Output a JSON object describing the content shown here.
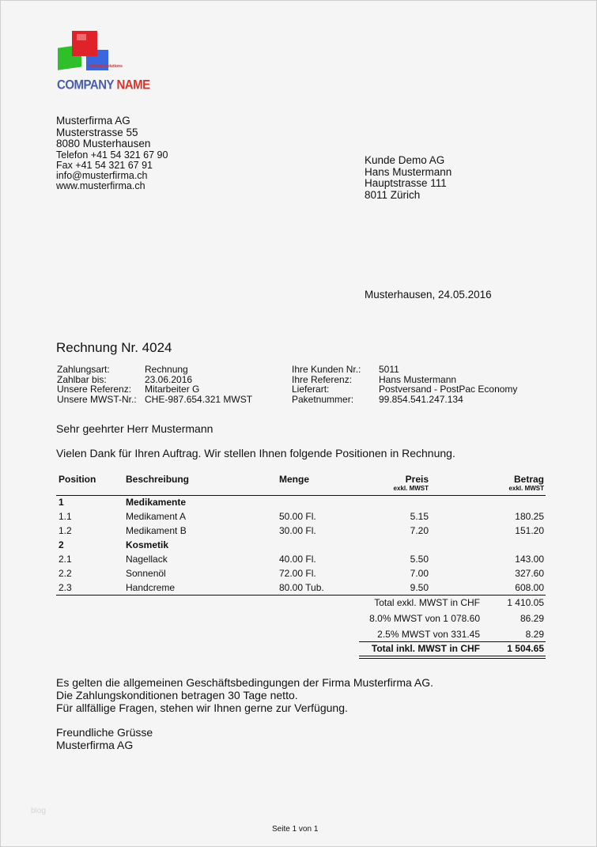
{
  "logo": {
    "text_main": "COMPANY",
    "text_accent": "NAME",
    "tagline": "Network Solutions"
  },
  "sender": [
    "Musterfirma AG",
    "Musterstrasse 55",
    "8080 Musterhausen",
    "Telefon +41 54 321 67 90",
    "Fax +41 54 321 67 91",
    "info@musterfirma.ch",
    "www.musterfirma.ch"
  ],
  "recipient": [
    "Kunde Demo AG",
    "Hans Mustermann",
    "Hauptstrasse 111",
    "8011 Zürich"
  ],
  "place_date": "Musterhausen, 24.05.2016",
  "title": "Rechnung Nr. 4024",
  "info_left": [
    {
      "label": "Zahlungsart:",
      "value": "Rechnung"
    },
    {
      "label": "Zahlbar bis:",
      "value": "23.06.2016"
    },
    {
      "label": "Unsere Referenz:",
      "value": "Mitarbeiter G"
    },
    {
      "label": "Unsere MWST-Nr.:",
      "value": "CHE-987.654.321 MWST"
    }
  ],
  "info_right": [
    {
      "label": "Ihre Kunden Nr.:",
      "value": "5011"
    },
    {
      "label": "Ihre Referenz:",
      "value": "Hans Mustermann"
    },
    {
      "label": "Lieferart:",
      "value": "Postversand - PostPac Economy"
    },
    {
      "label": "Paketnummer:",
      "value": "99.854.541.247.134"
    }
  ],
  "salutation": "Sehr geehrter Herr Mustermann",
  "intro": "Vielen Dank für Ihren Auftrag. Wir stellen Ihnen folgende Positionen in Rechnung.",
  "table": {
    "headers": {
      "position": "Position",
      "description": "Beschreibung",
      "quantity": "Menge",
      "price": "Preis",
      "price_sub": "exkl. MWST",
      "amount": "Betrag",
      "amount_sub": "exkl. MWST"
    },
    "rows": [
      {
        "pos": "1",
        "desc": "Medikamente",
        "qty": "",
        "price": "",
        "amount": "",
        "group": true
      },
      {
        "pos": "1.1",
        "desc": "Medikament A",
        "qty": "50.00 Fl.",
        "price": "5.15",
        "amount": "180.25"
      },
      {
        "pos": "1.2",
        "desc": "Medikament B",
        "qty": "30.00 Fl.",
        "price": "7.20",
        "amount": "151.20"
      },
      {
        "pos": "2",
        "desc": "Kosmetik",
        "qty": "",
        "price": "",
        "amount": "",
        "group": true
      },
      {
        "pos": "2.1",
        "desc": "Nagellack",
        "qty": "40.00 Fl.",
        "price": "5.50",
        "amount": "143.00"
      },
      {
        "pos": "2.2",
        "desc": "Sonnenöl",
        "qty": "72.00 Fl.",
        "price": "7.00",
        "amount": "327.60"
      },
      {
        "pos": "2.3",
        "desc": "Handcreme",
        "qty": "80.00 Tub.",
        "price": "9.50",
        "amount": "608.00"
      }
    ],
    "totals": [
      {
        "label": "Total exkl. MWST in CHF",
        "value": "1 410.05"
      },
      {
        "label": "8.0% MWST von 1 078.60",
        "value": "86.29"
      },
      {
        "label": "2.5% MWST von 331.45",
        "value": "8.29"
      },
      {
        "label": "Total inkl. MWST in CHF",
        "value": "1 504.65",
        "bold": true
      }
    ]
  },
  "closing_text": [
    "Es gelten die allgemeinen Geschäftsbedingungen der Firma Musterfirma AG.",
    "Die Zahlungskonditionen betragen 30 Tage netto.",
    "Für allfällige Fragen, stehen wir Ihnen gerne zur Verfügung."
  ],
  "greeting": [
    "Freundliche Grüsse",
    "Musterfirma AG"
  ],
  "watermark": "blog",
  "footer": "Seite 1 von 1"
}
